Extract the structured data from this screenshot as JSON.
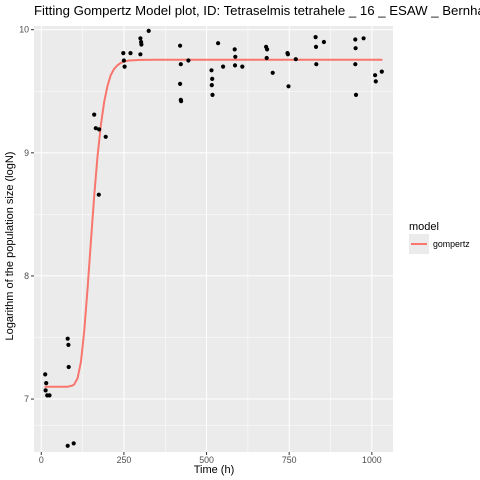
{
  "chart_data": {
    "type": "scatter",
    "title": "Fitting Gompertz Model plot, ID: Tetraselmis tetrahele _ 16 _ ESAW _ Bernha",
    "xlabel": "Time (h)",
    "ylabel": "Logarithm of the population size (logN)",
    "xlim": [
      -22,
      1064
    ],
    "ylim": [
      6.57,
      10.03
    ],
    "x_ticks": [
      0,
      250,
      500,
      750,
      1000
    ],
    "x_tick_labels": [
      "0",
      "250",
      "500",
      "750",
      "1000"
    ],
    "y_ticks": [
      7,
      8,
      9,
      10
    ],
    "y_tick_labels": [
      "7",
      "8",
      "9",
      "10"
    ],
    "grid": true,
    "legend": {
      "title": "model",
      "placement": "right",
      "entries": [
        "gompertz"
      ]
    },
    "colors": {
      "panel": "#ebebeb",
      "grid": "#ffffff",
      "points": "#000000",
      "fit": "#f8766d"
    },
    "series": [
      {
        "kind": "points",
        "x": [
          12,
          15,
          13,
          18,
          25,
          80,
          82,
          83,
          80,
          98,
          160,
          165,
          175,
          174,
          195,
          248,
          250,
          252,
          270,
          300,
          302,
          300,
          303,
          325,
          420,
          422,
          420,
          423,
          422,
          445,
          515,
          517,
          516,
          518,
          535,
          550,
          585,
          587,
          586,
          608,
          680,
          683,
          682,
          700,
          745,
          746,
          748,
          770,
          830,
          831,
          832,
          855,
          950,
          951,
          950,
          952,
          975,
          1010,
          1012,
          1030
        ],
        "y": [
          7.2,
          7.13,
          7.07,
          7.03,
          7.03,
          7.49,
          7.44,
          7.26,
          6.62,
          6.64,
          9.31,
          9.2,
          9.19,
          8.66,
          9.13,
          9.81,
          9.75,
          9.7,
          9.81,
          9.93,
          9.9,
          9.8,
          9.88,
          9.99,
          9.87,
          9.72,
          9.56,
          9.42,
          9.43,
          9.75,
          9.67,
          9.6,
          9.55,
          9.47,
          9.89,
          9.7,
          9.84,
          9.78,
          9.71,
          9.7,
          9.86,
          9.84,
          9.77,
          9.65,
          9.81,
          9.8,
          9.54,
          9.76,
          9.94,
          9.86,
          9.72,
          9.9,
          9.92,
          9.85,
          9.72,
          9.47,
          9.93,
          9.63,
          9.58,
          9.66
        ]
      },
      {
        "kind": "fit",
        "name": "gompertz",
        "x": [
          10,
          20,
          40,
          60,
          80,
          95,
          100,
          110,
          120,
          130,
          140,
          150,
          160,
          170,
          180,
          190,
          200,
          210,
          220,
          230,
          240,
          250,
          265,
          280,
          300,
          350,
          400,
          500,
          600,
          700,
          800,
          900,
          1000,
          1032
        ],
        "y": [
          7.1,
          7.1,
          7.1,
          7.1,
          7.1,
          7.11,
          7.12,
          7.17,
          7.3,
          7.55,
          7.9,
          8.28,
          8.65,
          8.97,
          9.22,
          9.41,
          9.54,
          9.63,
          9.68,
          9.71,
          9.73,
          9.74,
          9.75,
          9.752,
          9.755,
          9.756,
          9.756,
          9.756,
          9.756,
          9.756,
          9.756,
          9.756,
          9.756,
          9.756
        ]
      }
    ]
  }
}
